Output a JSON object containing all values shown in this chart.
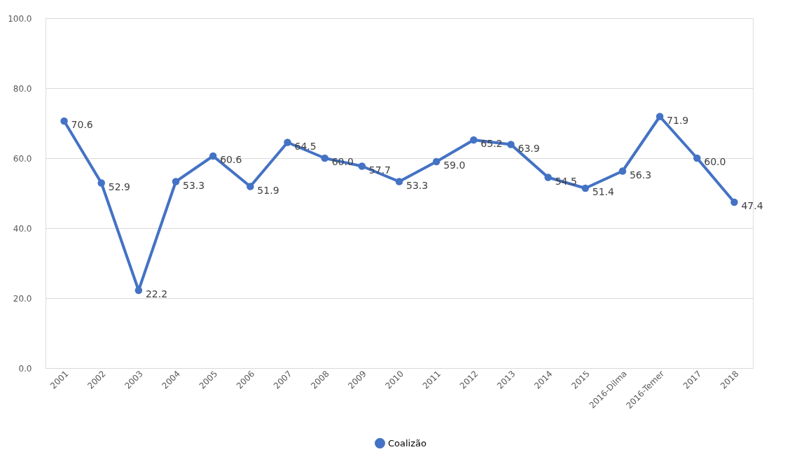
{
  "chart_data": {
    "type": "line",
    "categories": [
      "2001",
      "2002",
      "2003",
      "2004",
      "2005",
      "2006",
      "2007",
      "2008",
      "2009",
      "2010",
      "2011",
      "2012",
      "2013",
      "2014",
      "2015",
      "2016-Dilma",
      "2016-Temer",
      "2017",
      "2018"
    ],
    "series": [
      {
        "name": "Coalizão",
        "color": "#4472c4",
        "values": [
          70.6,
          52.9,
          22.2,
          53.3,
          60.6,
          51.9,
          64.5,
          60.0,
          57.7,
          53.3,
          59.0,
          65.2,
          63.9,
          54.5,
          51.4,
          56.3,
          71.9,
          60.0,
          47.4
        ]
      }
    ],
    "ylim": [
      0,
      100
    ],
    "yticks": [
      {
        "value": 0,
        "label": "0.0"
      },
      {
        "value": 20,
        "label": "20.0"
      },
      {
        "value": 40,
        "label": "40.0"
      },
      {
        "value": 60,
        "label": "60.0"
      },
      {
        "value": 80,
        "label": "80.0"
      },
      {
        "value": 100,
        "label": "100.0"
      }
    ],
    "value_labels": [
      "70.6",
      "52.9",
      "22.2",
      "53.3",
      "60.6",
      "51.9",
      "64.5",
      "60.0",
      "57.7",
      "53.3",
      "59.0",
      "65.2",
      "63.9",
      "54.5",
      "51.4",
      "56.3",
      "71.9",
      "60.0",
      "47.4"
    ],
    "grid": "y",
    "legend": "bottom",
    "marker": "circle",
    "line_style": "solid"
  }
}
